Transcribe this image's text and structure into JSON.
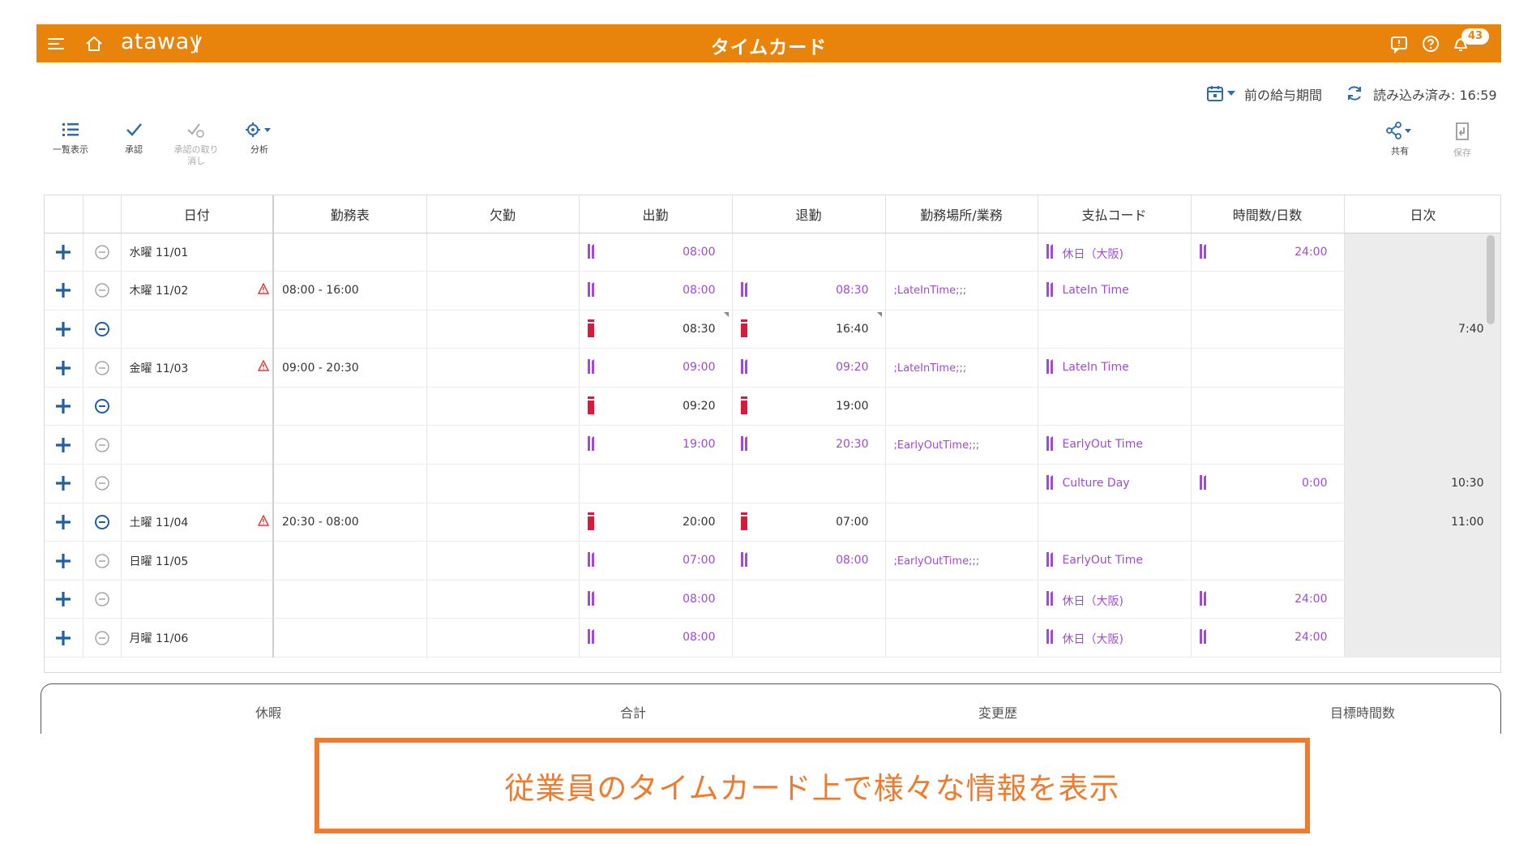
{
  "app": {
    "brand": "ataway",
    "title": "タイムカード",
    "notification_count": "43",
    "accent_color": "#e8840c"
  },
  "period": {
    "range_label": "前の給与期間",
    "loaded_label": "読み込み済み: 16:59"
  },
  "toolbar": {
    "list_view": "一覧表示",
    "approve": "承認",
    "undo_approve_1": "承認の取り",
    "undo_approve_2": "消し",
    "analyze": "分析",
    "share": "共有",
    "save": "保存"
  },
  "table": {
    "headers": [
      "日付",
      "勤務表",
      "欠勤",
      "出勤",
      "退勤",
      "勤務場所/業務",
      "支払コード",
      "時間数/日数",
      "日次"
    ],
    "rows": [
      {
        "date": "水曜 11/01",
        "warn": false,
        "schedule": "",
        "in": "08:00",
        "in_kind": "purple",
        "out": "",
        "out_kind": "",
        "loc": "",
        "code": "休日（大阪)",
        "hours": "24:00",
        "daily": "",
        "minus": "light"
      },
      {
        "date": "木曜 11/02",
        "warn": true,
        "schedule": "08:00 - 16:00",
        "in": "08:00",
        "in_kind": "purple",
        "out": "08:30",
        "out_kind": "purple",
        "loc": ";LateInTime;;;",
        "code": "LateIn Time",
        "hours": "",
        "daily": "",
        "minus": "light"
      },
      {
        "date": "",
        "warn": false,
        "schedule": "",
        "in": "08:30",
        "in_kind": "red",
        "out": "16:40",
        "out_kind": "red",
        "loc": "",
        "code": "",
        "hours": "",
        "daily": "7:40",
        "minus": "dark",
        "corner": true
      },
      {
        "date": "金曜 11/03",
        "warn": true,
        "schedule": "09:00 - 20:30",
        "in": "09:00",
        "in_kind": "purple",
        "out": "09:20",
        "out_kind": "purple",
        "loc": ";LateInTime;;;",
        "code": "LateIn Time",
        "hours": "",
        "daily": "",
        "minus": "light"
      },
      {
        "date": "",
        "warn": false,
        "schedule": "",
        "in": "09:20",
        "in_kind": "red",
        "out": "19:00",
        "out_kind": "red",
        "loc": "",
        "code": "",
        "hours": "",
        "daily": "",
        "minus": "dark"
      },
      {
        "date": "",
        "warn": false,
        "schedule": "",
        "in": "19:00",
        "in_kind": "purple",
        "out": "20:30",
        "out_kind": "purple",
        "loc": ";EarlyOutTime;;;",
        "code": "EarlyOut Time",
        "hours": "",
        "daily": "",
        "minus": "light"
      },
      {
        "date": "",
        "warn": false,
        "schedule": "",
        "in": "",
        "in_kind": "",
        "out": "",
        "out_kind": "",
        "loc": "",
        "code": "Culture Day",
        "hours": "0:00",
        "daily": "10:30",
        "minus": "light"
      },
      {
        "date": "土曜 11/04",
        "warn": true,
        "schedule": "20:30 - 08:00",
        "in": "20:00",
        "in_kind": "red",
        "out": "07:00",
        "out_kind": "red",
        "loc": "",
        "code": "",
        "hours": "",
        "daily": "11:00",
        "minus": "dark"
      },
      {
        "date": "日曜 11/05",
        "warn": false,
        "schedule": "",
        "in": "07:00",
        "in_kind": "purple",
        "out": "08:00",
        "out_kind": "purple",
        "loc": ";EarlyOutTime;;;",
        "code": "EarlyOut Time",
        "hours": "",
        "daily": "",
        "minus": "light"
      },
      {
        "date": "",
        "warn": false,
        "schedule": "",
        "in": "08:00",
        "in_kind": "purple",
        "out": "",
        "out_kind": "",
        "loc": "",
        "code": "休日（大阪)",
        "hours": "24:00",
        "daily": "",
        "minus": "light"
      },
      {
        "date": "月曜 11/06",
        "warn": false,
        "schedule": "",
        "in": "08:00",
        "in_kind": "purple",
        "out": "",
        "out_kind": "",
        "loc": "",
        "code": "休日（大阪)",
        "hours": "24:00",
        "daily": "",
        "minus": "light"
      }
    ]
  },
  "tabs": [
    "休暇",
    "合計",
    "変更歴",
    "目標時間数"
  ],
  "caption": "従業員のタイムカード上で様々な情報を表示"
}
